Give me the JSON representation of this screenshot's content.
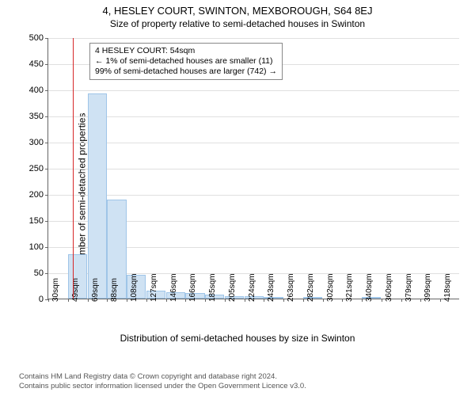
{
  "title": "4, HESLEY COURT, SWINTON, MEXBOROUGH, S64 8EJ",
  "subtitle": "Size of property relative to semi-detached houses in Swinton",
  "ylabel": "Number of semi-detached properties",
  "xlabel": "Distribution of semi-detached houses by size in Swinton",
  "footer_line1": "Contains HM Land Registry data © Crown copyright and database right 2024.",
  "footer_line2": "Contains public sector information licensed under the Open Government Licence v3.0.",
  "annotation": {
    "line1": "4 HESLEY COURT: 54sqm",
    "line2": "← 1% of semi-detached houses are smaller (11)",
    "line3": "99% of semi-detached houses are larger (742) →"
  },
  "chart": {
    "type": "histogram",
    "ylim": [
      0,
      500
    ],
    "ytick_step": 50,
    "yticks": [
      0,
      50,
      100,
      150,
      200,
      250,
      300,
      350,
      400,
      450,
      500
    ],
    "x_start": 30,
    "x_bin_width_sqm": 19.4,
    "xtick_count": 21,
    "x_unit": "sqm",
    "marker_x_sqm": 54,
    "marker_color": "#d62728",
    "bar_fill": "#cfe2f3",
    "bar_border": "#9fc5e8",
    "grid_color": "#e0e0e0",
    "axis_color": "#666666",
    "background_color": "#ffffff",
    "title_fontsize": 13,
    "subtitle_fontsize": 12,
    "label_fontsize": 12,
    "tick_fontsize": 11,
    "xtick_fontsize": 10,
    "annotation_fontsize": 10.5,
    "values": [
      0,
      85,
      392,
      190,
      45,
      15,
      12,
      10,
      8,
      5,
      5,
      3,
      0,
      3,
      0,
      0,
      2,
      0,
      0,
      0,
      0
    ]
  }
}
